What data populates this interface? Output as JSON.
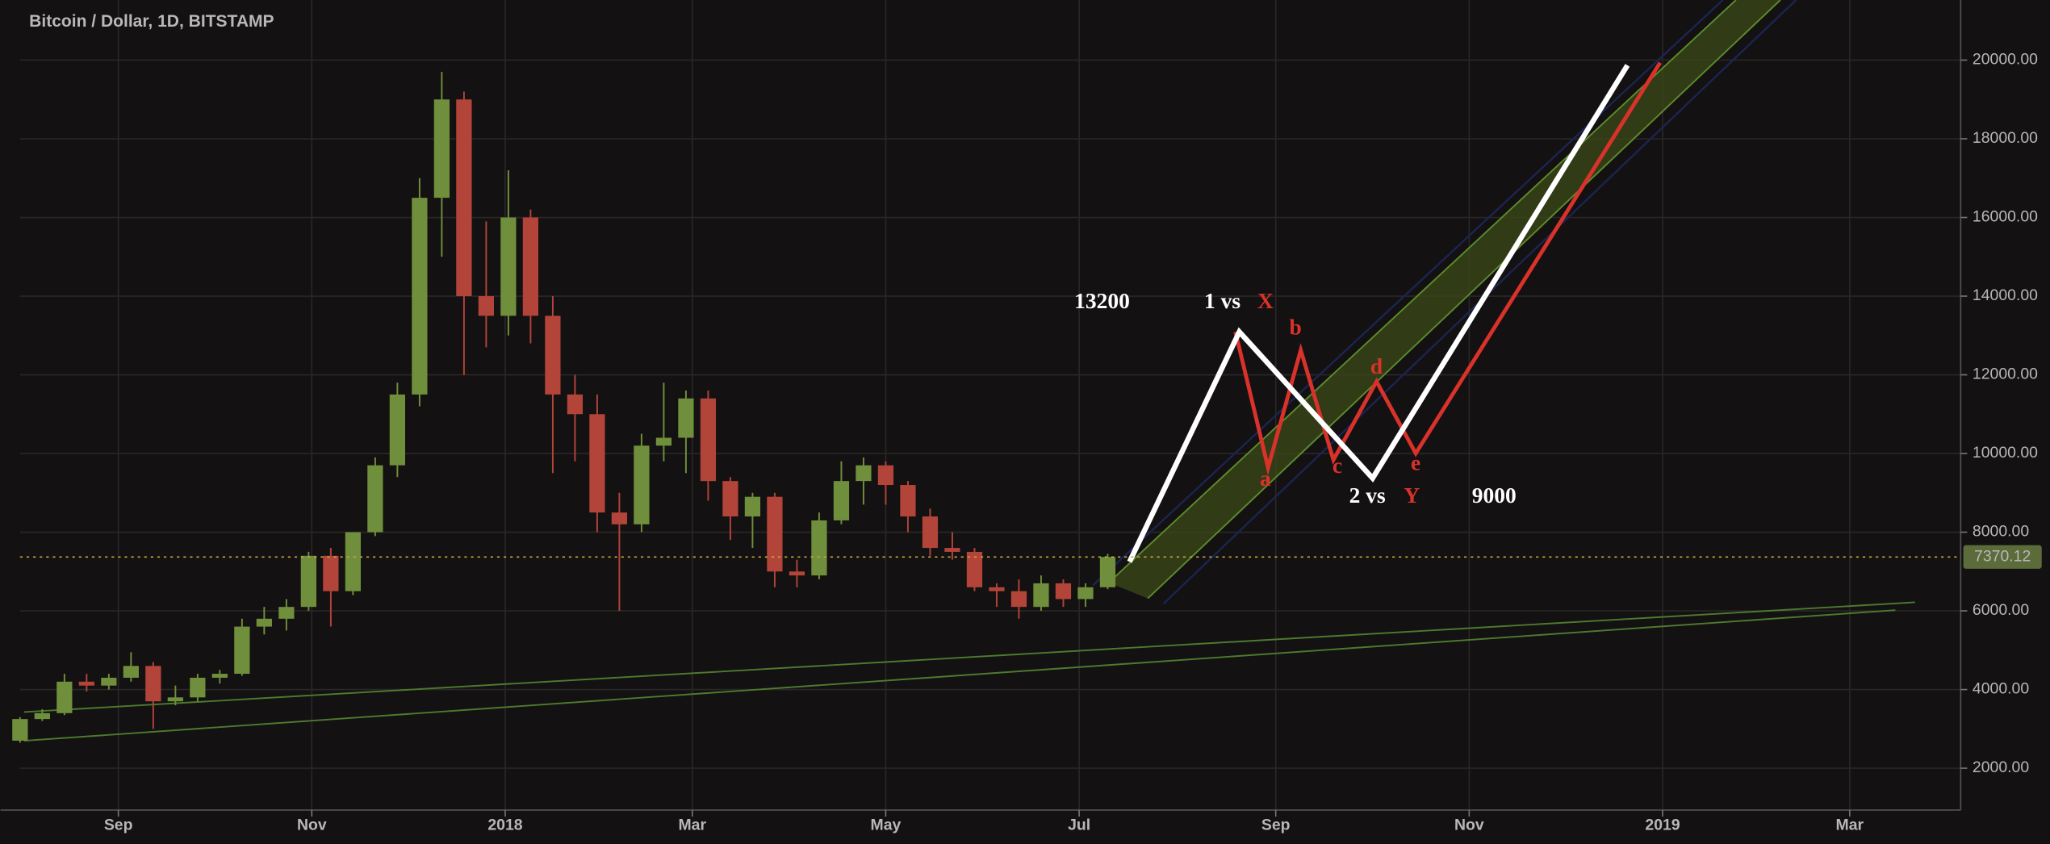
{
  "chart_data": {
    "type": "candlestick",
    "title": "Bitcoin / Dollar, 1D, BITSTAMP",
    "up_color": "#6f8f3c",
    "down_color": "#b3443a",
    "x": [
      -31,
      -24,
      -17,
      -10,
      -3,
      4,
      11,
      18,
      25,
      32,
      39,
      46,
      53,
      60,
      67,
      74,
      81,
      88,
      95,
      102,
      109,
      116,
      123,
      130,
      137,
      144,
      151,
      158,
      165,
      172,
      179,
      186,
      193,
      200,
      207,
      214,
      221,
      228,
      235,
      242,
      249,
      256,
      263,
      270,
      277,
      284,
      291,
      298,
      305,
      312
    ],
    "open": [
      2700,
      3250,
      3400,
      4200,
      4100,
      4300,
      4600,
      3700,
      3800,
      4300,
      4400,
      5600,
      5800,
      6100,
      7400,
      6500,
      8000,
      9700,
      11500,
      16500,
      19000,
      14000,
      13500,
      16000,
      13500,
      11500,
      11000,
      8500,
      8200,
      10200,
      10400,
      11400,
      9300,
      8400,
      8900,
      7000,
      6900,
      8300,
      9300,
      9700,
      9200,
      8400,
      7600,
      7500,
      6600,
      6500,
      6100,
      6700,
      6300,
      6600
    ],
    "high": [
      3300,
      3500,
      4400,
      4400,
      4400,
      4950,
      4700,
      4100,
      4400,
      4500,
      5800,
      6100,
      6300,
      7500,
      7600,
      8000,
      9900,
      11800,
      17000,
      19700,
      19200,
      15900,
      17200,
      16200,
      14000,
      12000,
      11500,
      9000,
      10500,
      11800,
      11600,
      11600,
      9400,
      9000,
      9000,
      7300,
      8500,
      9800,
      9900,
      9800,
      9300,
      8600,
      8000,
      7600,
      6700,
      6800,
      6900,
      6800,
      6700,
      7450
    ],
    "low": [
      2650,
      3200,
      3350,
      3950,
      4000,
      4200,
      3000,
      3600,
      3700,
      4150,
      4350,
      5400,
      5500,
      6000,
      5600,
      6400,
      7900,
      9400,
      11200,
      15000,
      12000,
      12700,
      13000,
      12800,
      9500,
      9800,
      8000,
      6000,
      8000,
      9800,
      9500,
      8800,
      7800,
      7600,
      6600,
      6600,
      6800,
      8200,
      8700,
      8700,
      8000,
      7400,
      7300,
      6500,
      6100,
      5800,
      6000,
      6100,
      6100,
      6550
    ],
    "close": [
      3250,
      3400,
      4200,
      4100,
      4300,
      4600,
      3700,
      3800,
      4300,
      4400,
      5600,
      5800,
      6100,
      7400,
      6500,
      8000,
      9700,
      11500,
      16500,
      19000,
      14000,
      13500,
      16000,
      13500,
      11500,
      11000,
      8500,
      8200,
      10200,
      10400,
      11400,
      9300,
      8400,
      8900,
      7000,
      6900,
      8300,
      9300,
      9700,
      9200,
      8400,
      7600,
      7500,
      6600,
      6500,
      6100,
      6700,
      6300,
      6600,
      7370
    ],
    "last_price": {
      "value": 7370.12,
      "label": "7370.12"
    },
    "xlim": [
      -31,
      581
    ],
    "xticks": [
      {
        "value": 0,
        "label": "Sep"
      },
      {
        "value": 61,
        "label": "Nov"
      },
      {
        "value": 122,
        "label": "2018"
      },
      {
        "value": 181,
        "label": "Mar"
      },
      {
        "value": 242,
        "label": "May"
      },
      {
        "value": 303,
        "label": "Jul"
      },
      {
        "value": 365,
        "label": "Sep"
      },
      {
        "value": 426,
        "label": "Nov"
      },
      {
        "value": 487,
        "label": "2019"
      },
      {
        "value": 546,
        "label": "Mar"
      }
    ],
    "ylim": [
      937,
      21528
    ],
    "yticks": [
      {
        "value": 2000,
        "label": "2000.00"
      },
      {
        "value": 4000,
        "label": "4000.00"
      },
      {
        "value": 6000,
        "label": "6000.00"
      },
      {
        "value": 8000,
        "label": "8000.00"
      },
      {
        "value": 10000,
        "label": "10000.00"
      },
      {
        "value": 12000,
        "label": "12000.00"
      },
      {
        "value": 14000,
        "label": "14000.00"
      },
      {
        "value": 16000,
        "label": "16000.00"
      },
      {
        "value": 18000,
        "label": "18000.00"
      },
      {
        "value": 20000,
        "label": "20000.00"
      }
    ],
    "grid": true,
    "annotations": [
      {
        "text": "13200",
        "color": "#ffffff"
      },
      {
        "text": "1 vs",
        "color": "#ffffff"
      },
      {
        "text": "X",
        "color": "#d8322a"
      },
      {
        "text": "a",
        "color": "#d8322a"
      },
      {
        "text": "b",
        "color": "#d8322a"
      },
      {
        "text": "c",
        "color": "#d8322a"
      },
      {
        "text": "d",
        "color": "#d8322a"
      },
      {
        "text": "e",
        "color": "#d8322a"
      },
      {
        "text": "2 vs",
        "color": "#ffffff"
      },
      {
        "text": "Y",
        "color": "#d8322a"
      },
      {
        "text": "9000",
        "color": "#ffffff"
      }
    ]
  }
}
